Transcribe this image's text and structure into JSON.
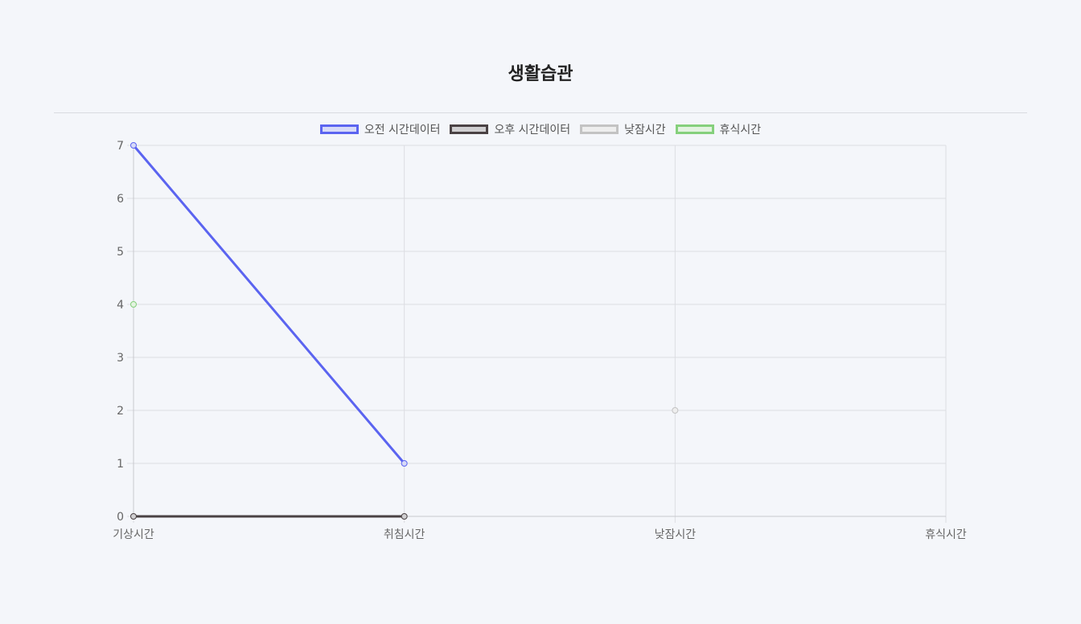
{
  "page": {
    "title": "생활습관"
  },
  "chart_data": {
    "type": "line",
    "title": "생활습관",
    "categories": [
      "기상시간",
      "취침시간",
      "낮잠시간",
      "휴식시간"
    ],
    "ylim": [
      0,
      7
    ],
    "yticks": [
      0,
      1,
      2,
      3,
      4,
      5,
      6,
      7
    ],
    "xlabel": "",
    "ylabel": "",
    "grid": true,
    "legend_position": "top",
    "series": [
      {
        "name": "오전 시간데이터",
        "color": "#5b64f0",
        "fill": "#d7daf8",
        "values": [
          7,
          1,
          null,
          null
        ]
      },
      {
        "name": "오후 시간데이터",
        "color": "#4a4244",
        "fill": "#d0cfd1",
        "values": [
          0,
          0,
          null,
          null
        ]
      },
      {
        "name": "낮잠시간",
        "color": "#c3c3c3",
        "fill": "#eeeeee",
        "values": [
          null,
          null,
          2,
          null
        ]
      },
      {
        "name": "휴식시간",
        "color": "#85d07c",
        "fill": "#e3f3e0",
        "values": [
          4,
          null,
          null,
          null
        ]
      }
    ]
  }
}
